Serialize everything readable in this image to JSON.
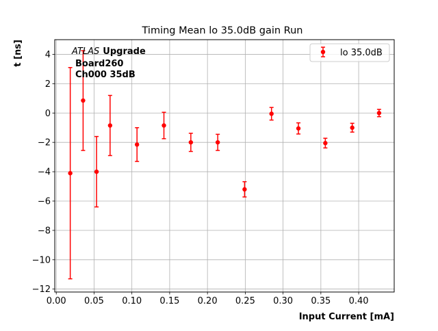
{
  "chart_data": {
    "type": "scatter",
    "title": "Timing Mean lo 35.0dB gain Run",
    "xlabel": "Input Current [mA]",
    "ylabel": "t [ns]",
    "xlim": [
      -0.002,
      0.447
    ],
    "ylim": [
      -12.2,
      5.0
    ],
    "xticks": [
      0.0,
      0.05,
      0.1,
      0.15,
      0.2,
      0.25,
      0.3,
      0.35,
      0.4
    ],
    "xtick_labels": [
      "0.00",
      "0.05",
      "0.10",
      "0.15",
      "0.20",
      "0.25",
      "0.30",
      "0.35",
      "0.40"
    ],
    "yticks": [
      4,
      2,
      0,
      -2,
      -4,
      -6,
      -8,
      -10,
      -12
    ],
    "ytick_labels": [
      "4",
      "2",
      "0",
      "−2",
      "−4",
      "−6",
      "−8",
      "−10",
      "−12"
    ],
    "grid": true,
    "legend_position": "top-right",
    "annotation": {
      "atlas": "ATLAS",
      "upgrade": "Upgrade",
      "line2": "Board260",
      "line3": "Ch000 35dB"
    },
    "series": [
      {
        "name": "lo 35.0dB",
        "color": "#ff0000",
        "marker": "circle",
        "points": [
          {
            "x": 0.0185,
            "y": -4.1,
            "yerr": 7.2
          },
          {
            "x": 0.0355,
            "y": 0.85,
            "yerr": 3.4
          },
          {
            "x": 0.0533,
            "y": -4.0,
            "yerr": 2.4
          },
          {
            "x": 0.0712,
            "y": -0.85,
            "yerr": 2.05
          },
          {
            "x": 0.1068,
            "y": -2.15,
            "yerr": 1.15
          },
          {
            "x": 0.1424,
            "y": -0.85,
            "yerr": 0.9
          },
          {
            "x": 0.178,
            "y": -2.0,
            "yerr": 0.62
          },
          {
            "x": 0.2136,
            "y": -2.0,
            "yerr": 0.55
          },
          {
            "x": 0.2491,
            "y": -5.2,
            "yerr": 0.52
          },
          {
            "x": 0.2847,
            "y": -0.05,
            "yerr": 0.43
          },
          {
            "x": 0.3203,
            "y": -1.05,
            "yerr": 0.38
          },
          {
            "x": 0.3559,
            "y": -2.05,
            "yerr": 0.33
          },
          {
            "x": 0.3915,
            "y": -1.0,
            "yerr": 0.3
          },
          {
            "x": 0.427,
            "y": 0.0,
            "yerr": 0.25
          }
        ]
      }
    ]
  }
}
